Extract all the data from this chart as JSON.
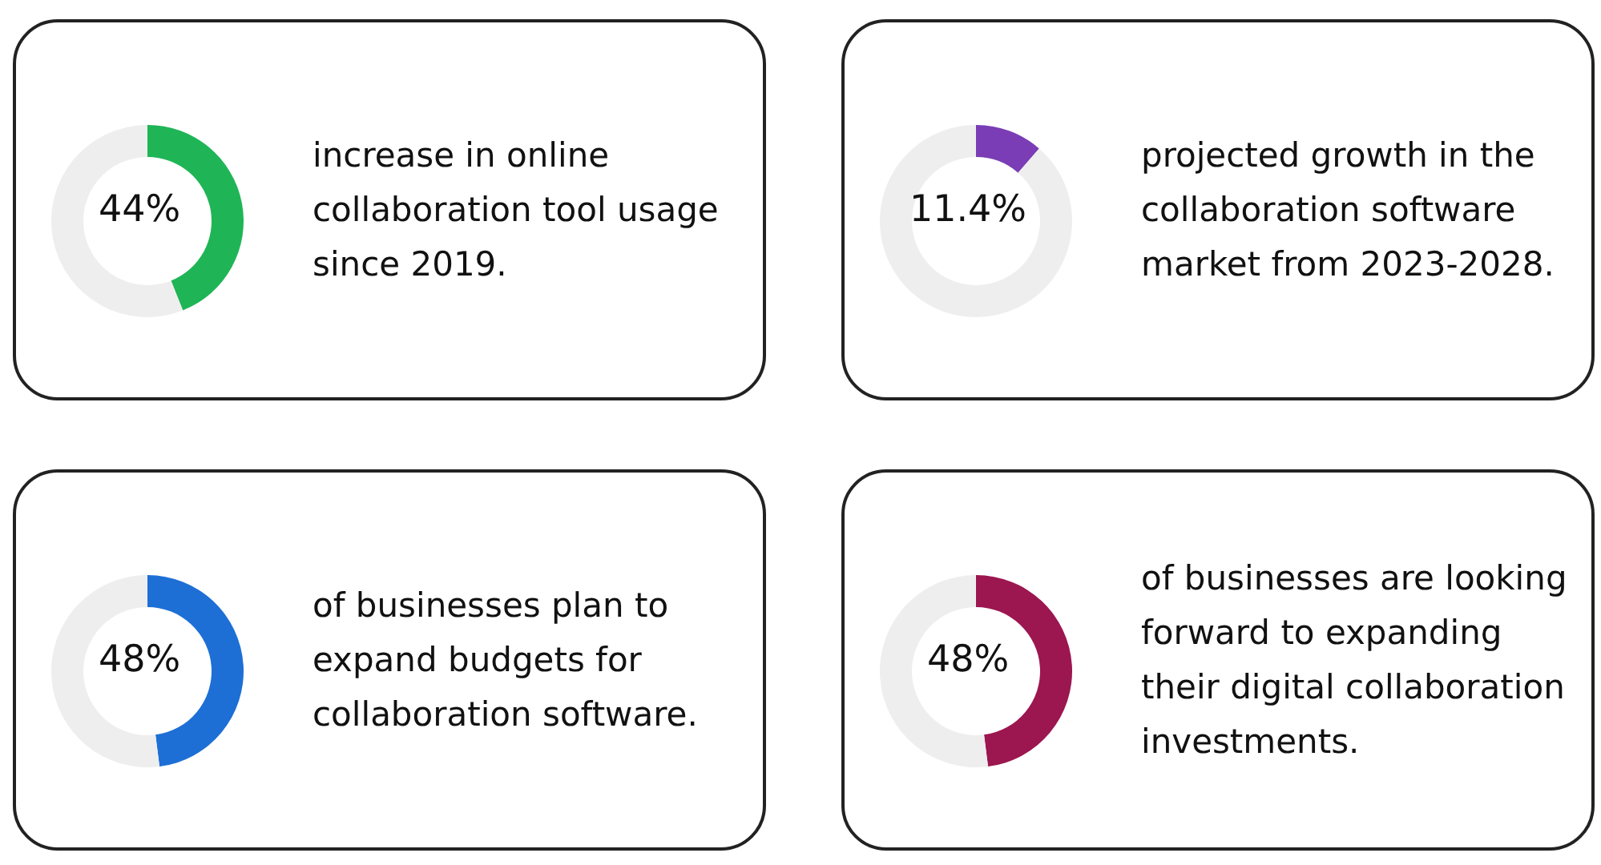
{
  "chart_data": [
    {
      "type": "donut",
      "title": "increase in online collaboration tool usage since 2019.",
      "categories": [
        null,
        null
      ],
      "values": [
        44,
        56
      ],
      "colors": [
        "#1fb556",
        "#eeeeee"
      ],
      "annotations": [
        "44%"
      ]
    },
    {
      "type": "donut",
      "title": "projected growth in the collaboration software market from 2023-2028.",
      "categories": [
        null,
        null
      ],
      "values": [
        11.4,
        88.6
      ],
      "colors": [
        "#7a3db5",
        "#eeeeee"
      ],
      "annotations": [
        "11.4%"
      ]
    },
    {
      "type": "donut",
      "title": "of businesses plan to expand budgets for collaboration software.",
      "categories": [
        null,
        null
      ],
      "values": [
        48,
        52
      ],
      "colors": [
        "#1d6fd6",
        "#eeeeee"
      ],
      "annotations": [
        "48%"
      ]
    },
    {
      "type": "donut",
      "title": "of businesses are looking forward to expanding their digital collaboration investments.",
      "categories": [
        null,
        null
      ],
      "values": [
        48,
        52
      ],
      "colors": [
        "#9c1650",
        "#eeeeee"
      ],
      "annotations": [
        "48%"
      ]
    }
  ]
}
